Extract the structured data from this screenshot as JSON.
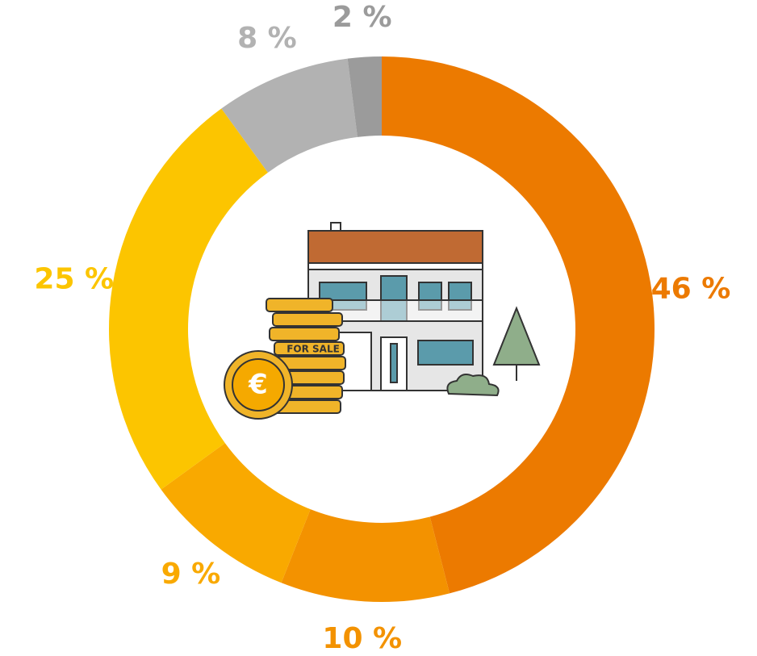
{
  "chart_data": {
    "type": "donut",
    "values": [
      46,
      10,
      9,
      25,
      8,
      2
    ],
    "value_labels": [
      "46 %",
      "10 %",
      "9 %",
      "25 %",
      "8 %",
      "2 %"
    ],
    "colors": [
      "#ec7a00",
      "#f39200",
      "#f9a900",
      "#fcc500",
      "#b2b2b2",
      "#9b9b9b"
    ],
    "illustration_text": "FOR SALE",
    "currency_symbol": "€"
  }
}
